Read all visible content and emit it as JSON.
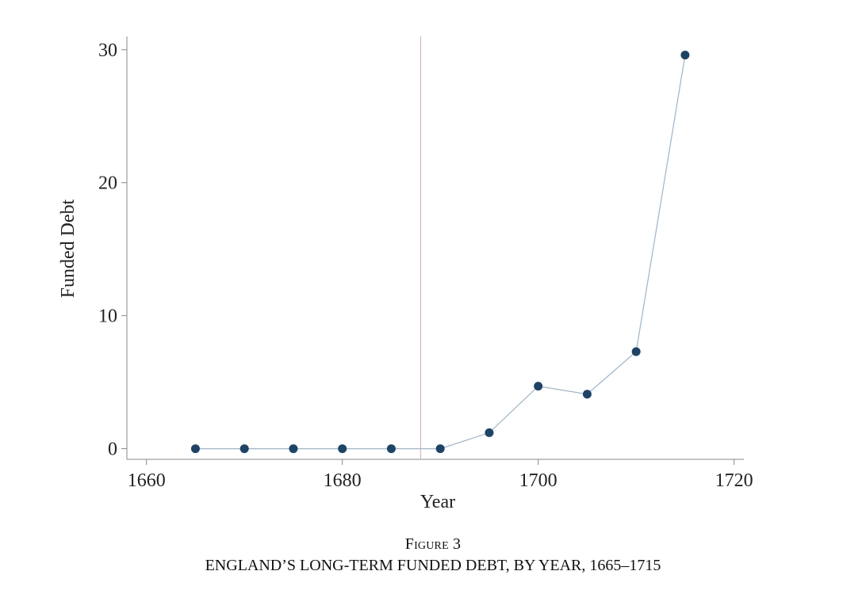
{
  "chart_data": {
    "type": "scatter",
    "connected": true,
    "title": "",
    "xlabel": "Year",
    "ylabel": "Funded Debt",
    "xlim": [
      1658,
      1721
    ],
    "ylim": [
      -0.8,
      31
    ],
    "x_ticks": [
      1660,
      1680,
      1700,
      1720
    ],
    "x_tick_labels": [
      "1660",
      "1680",
      "1700",
      "1720"
    ],
    "y_ticks": [
      0,
      10,
      20,
      30
    ],
    "y_tick_labels": [
      "0",
      "10",
      "20",
      "30"
    ],
    "reference_line": {
      "orientation": "vertical",
      "x": 1688
    },
    "grid": false,
    "series": [
      {
        "name": "Funded Debt",
        "x": [
          1665,
          1670,
          1675,
          1680,
          1685,
          1690,
          1695,
          1700,
          1705,
          1710,
          1715
        ],
        "y": [
          0,
          0,
          0,
          0,
          0,
          0,
          1.2,
          4.7,
          4.1,
          7.3,
          29.6
        ]
      }
    ],
    "colors": {
      "marker": "#1b4468",
      "line": "#9bb5cc",
      "reference_line": "#e3a9b5",
      "axis": "#888888"
    }
  },
  "caption": {
    "label": "Figure 3",
    "title": "ENGLAND’S LONG-TERM FUNDED DEBT, BY YEAR, 1665–1715"
  }
}
